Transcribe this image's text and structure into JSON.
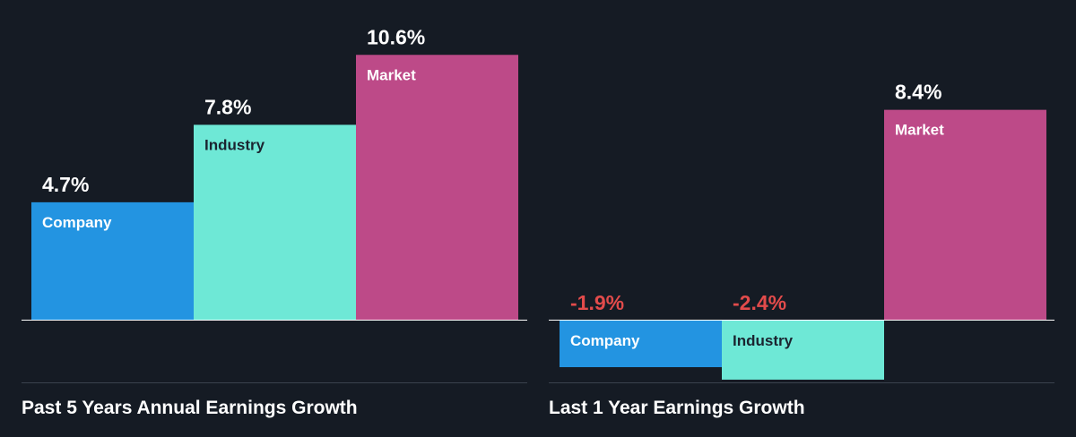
{
  "chart_data": [
    {
      "type": "bar",
      "title": "Past 5 Years Annual Earnings Growth",
      "categories": [
        "Company",
        "Industry",
        "Market"
      ],
      "values": [
        4.7,
        7.8,
        10.6
      ],
      "value_labels": [
        "4.7%",
        "7.8%",
        "10.6%"
      ],
      "unit": "%",
      "colors": [
        "#2394e1",
        "#6ee8d6",
        "#bd4a88"
      ],
      "label_colors": [
        "#ffffff",
        "#1b2430",
        "#ffffff"
      ],
      "negative_value_color": "#e24b4b",
      "grid": false,
      "legend": "none"
    },
    {
      "type": "bar",
      "title": "Last 1 Year Earnings Growth",
      "categories": [
        "Company",
        "Industry",
        "Market"
      ],
      "values": [
        -1.9,
        -2.4,
        8.4
      ],
      "value_labels": [
        "-1.9%",
        "-2.4%",
        "8.4%"
      ],
      "unit": "%",
      "colors": [
        "#2394e1",
        "#6ee8d6",
        "#bd4a88"
      ],
      "label_colors": [
        "#ffffff",
        "#1b2430",
        "#ffffff"
      ],
      "negative_value_color": "#e24b4b",
      "grid": false,
      "legend": "none"
    }
  ]
}
